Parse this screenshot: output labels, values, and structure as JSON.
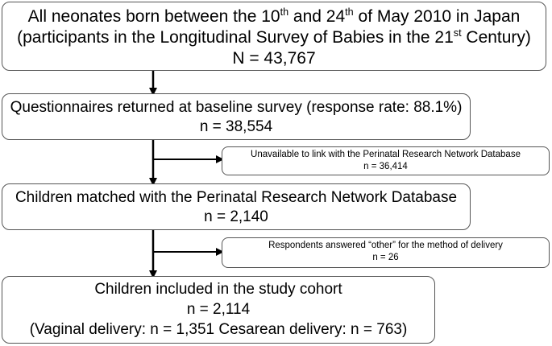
{
  "box1": {
    "line1_pre": "All neonates born between the 10",
    "line1_sup1": "th",
    "line1_mid": " and 24",
    "line1_sup2": "th",
    "line1_post": " of May 2010 in Japan",
    "line2_pre": "(participants in the Longitudinal Survey of Babies in the 21",
    "line2_sup": "st",
    "line2_post": "  Century)",
    "line3": "N = 43,767"
  },
  "box2": {
    "line1": "Questionnaires returned at baseline survey (response rate: 88.1%)",
    "line2": "n = 38,554"
  },
  "exclusion1": {
    "line1": "Unavailable to link with the Perinatal Research Network Database",
    "line2": "n = 36,414"
  },
  "box3": {
    "line1": "Children matched with the Perinatal Research Network Database",
    "line2": "n = 2,140"
  },
  "exclusion2": {
    "line1": "Respondents answered “other” for the method of delivery",
    "line2": "n = 26"
  },
  "box4": {
    "line1": "Children included in the study cohort",
    "line2": "n = 2,114",
    "line3": "(Vaginal delivery: n = 1,351  Cesarean delivery: n = 763)"
  },
  "colors": {
    "stroke": "#000000",
    "border": "#555555"
  }
}
